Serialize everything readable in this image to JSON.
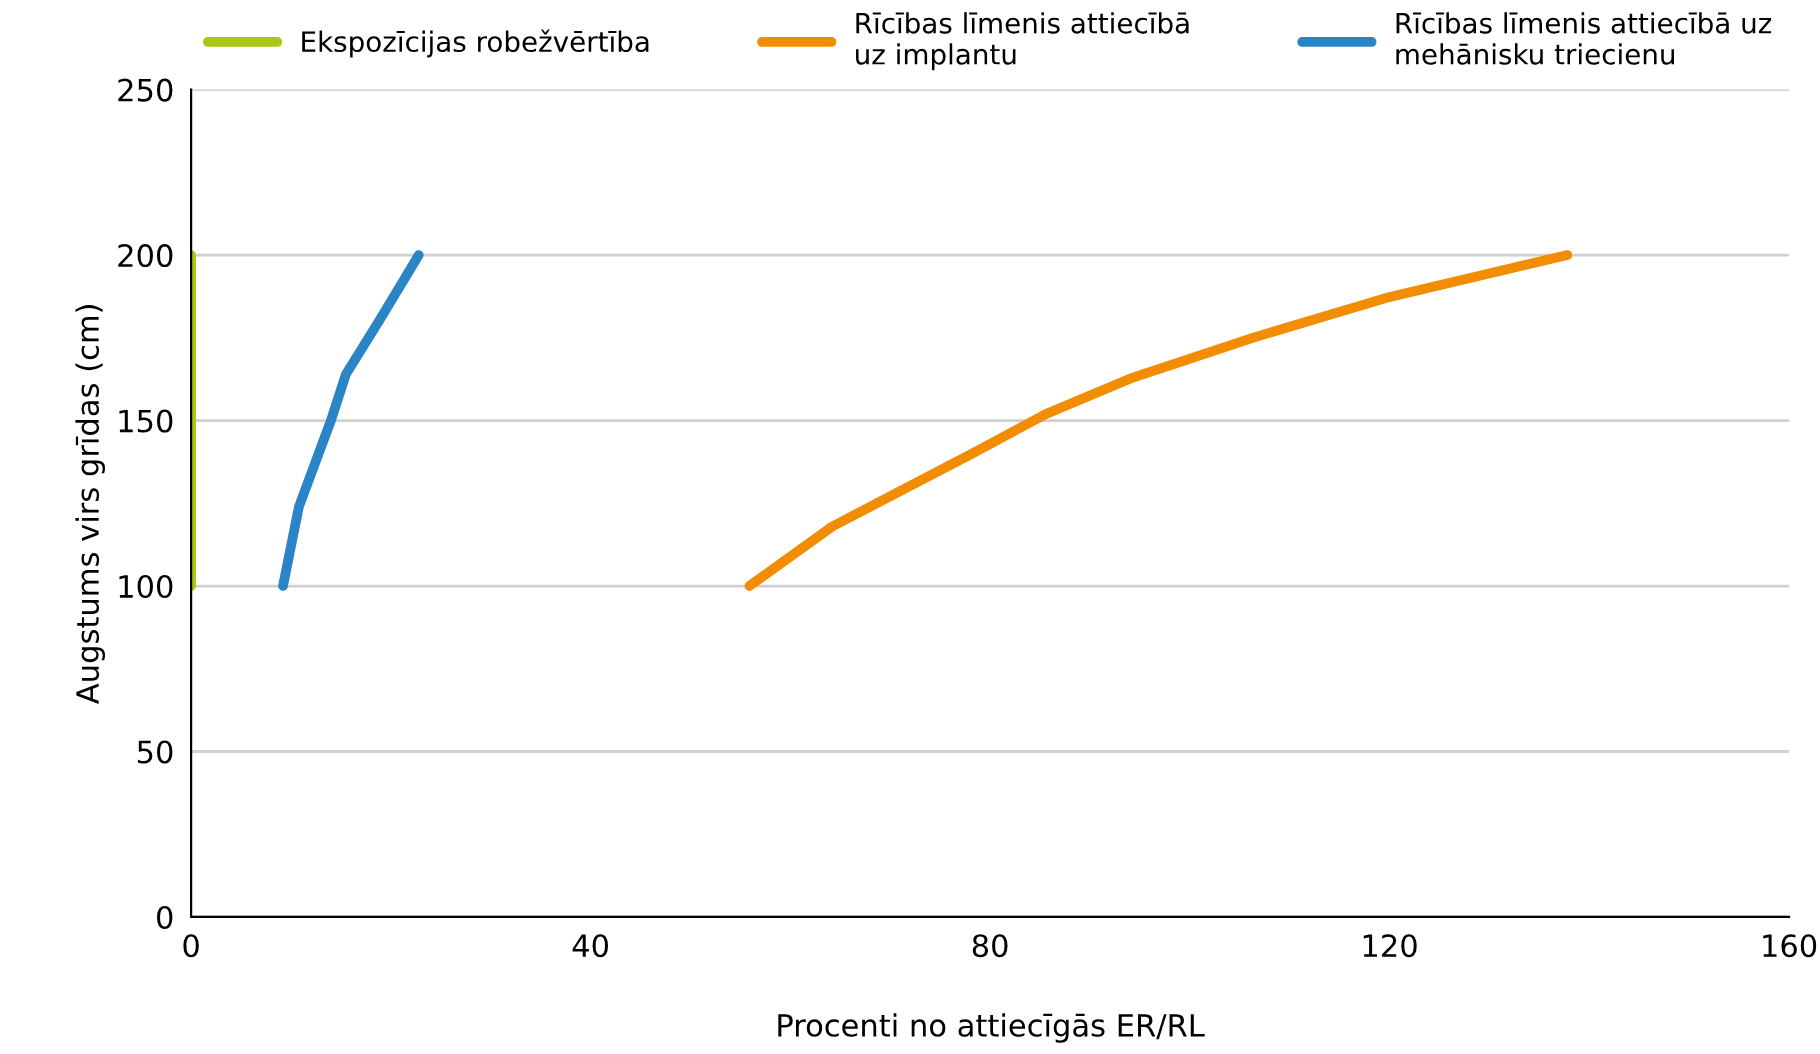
{
  "chart_data": {
    "type": "line",
    "xlabel": "Procenti no attiecīgās ER/RL",
    "ylabel": "Augstums virs grīdas (cm)",
    "xlim": [
      0,
      160
    ],
    "xticks": [
      0,
      40,
      80,
      120,
      160
    ],
    "ylim": [
      0,
      250
    ],
    "yticks": [
      0,
      50,
      100,
      150,
      200,
      250
    ],
    "grid": "y",
    "legend": "top",
    "line_style": "solid",
    "series": [
      {
        "name": "Ekspozīcijas robežvērtība",
        "color": "#a8c813",
        "x": [
          0,
          0
        ],
        "values": [
          100,
          200
        ]
      },
      {
        "name": "Rīcības līmenis attiecībā\nuz implantu",
        "color": "#f28c00",
        "x": [
          55.9,
          64.2,
          78.2,
          85.6,
          94.3,
          106.3,
          119.6,
          137.8
        ],
        "values": [
          100,
          118,
          140,
          152,
          163,
          175,
          187,
          200
        ]
      },
      {
        "name": "Rīcības līmenis attiecībā uz\nmehānisku triecienu",
        "color": "#2a85c6",
        "x": [
          9.2,
          10.8,
          14,
          15.5,
          18.8,
          22.8
        ],
        "values": [
          100,
          124,
          150,
          164,
          180,
          200
        ]
      }
    ]
  }
}
